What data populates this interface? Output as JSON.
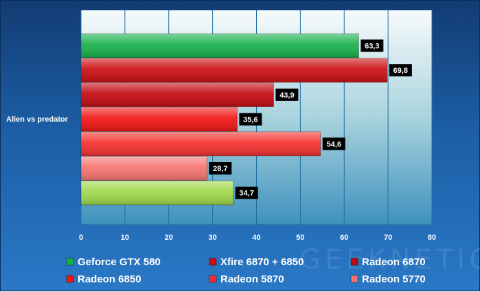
{
  "chart_data": {
    "type": "bar",
    "orientation": "horizontal",
    "title": "",
    "xlabel": "",
    "ylabel": "",
    "categories": [
      "Alien vs predator"
    ],
    "xlim": [
      0,
      80
    ],
    "x_ticks": [
      0,
      10,
      20,
      30,
      40,
      50,
      60,
      70,
      80
    ],
    "grid": true,
    "legend_position": "bottom",
    "series": [
      {
        "name": "Geforce GTX 580",
        "values": [
          63.3
        ],
        "label": "63,3",
        "color": "#16b04a"
      },
      {
        "name": "Xfire 6870 + 6850",
        "values": [
          69.8
        ],
        "label": "69,8",
        "color": "#cc0d12"
      },
      {
        "name": "Radeon 6870",
        "values": [
          43.9
        ],
        "label": "43,9",
        "color": "#c2090f"
      },
      {
        "name": "Radeon 6850",
        "values": [
          35.6
        ],
        "label": "35,6",
        "color": "#f21414"
      },
      {
        "name": "Radeon 5870",
        "values": [
          54.6
        ],
        "label": "54,6",
        "color": "#f5302e"
      },
      {
        "name": "Radeon 5770",
        "values": [
          28.7
        ],
        "label": "28,7",
        "color": "#f77470"
      },
      {
        "name": "",
        "values": [
          34.7
        ],
        "label": "34,7",
        "color": "#9ed84a"
      }
    ]
  },
  "watermark": "GEEKNETIC"
}
